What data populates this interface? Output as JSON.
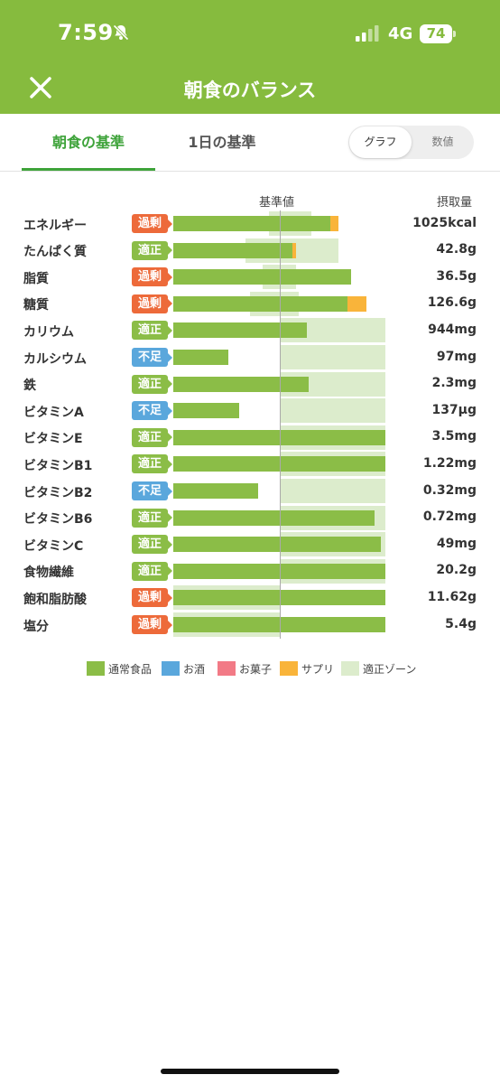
{
  "status_bar": {
    "time": "7:59",
    "network": "4G",
    "battery": "74"
  },
  "header": {
    "title": "朝食のバランス"
  },
  "tabs": [
    {
      "label": "朝食の基準",
      "active": true
    },
    {
      "label": "1日の基準",
      "active": false
    }
  ],
  "view_toggle": {
    "options": [
      "グラフ",
      "数値"
    ],
    "selected": "グラフ"
  },
  "columns": {
    "reference": "基準値",
    "intake": "摂取量"
  },
  "colors": {
    "normal_food": "#8bbd47",
    "alcohol": "#5aa7dc",
    "sweets": "#f27a86",
    "supplement": "#f9b43a",
    "zone": "#dceccc",
    "badge_excess": "#ed6a3a",
    "badge_proper": "#8bbd47",
    "badge_short": "#5aa7dc",
    "accent": "#3ea33a"
  },
  "nutrients": [
    {
      "name": "エネルギー",
      "status": "過剰",
      "value": "1025kcal",
      "zone": [
        0.45,
        0.65
      ],
      "food": 0.74,
      "supplement": 0.04
    },
    {
      "name": "たんぱく質",
      "status": "適正",
      "value": "42.8g",
      "zone": [
        0.34,
        0.78
      ],
      "food": 0.56,
      "supplement": 0.02
    },
    {
      "name": "脂質",
      "status": "過剰",
      "value": "36.5g",
      "zone": [
        0.42,
        0.58
      ],
      "food": 0.84,
      "supplement": 0
    },
    {
      "name": "糖質",
      "status": "過剰",
      "value": "126.6g",
      "zone": [
        0.36,
        0.59
      ],
      "food": 0.82,
      "supplement": 0.09
    },
    {
      "name": "カリウム",
      "status": "適正",
      "value": "944mg",
      "zone": [
        0.5,
        1.0
      ],
      "food": 0.63,
      "supplement": 0
    },
    {
      "name": "カルシウム",
      "status": "不足",
      "value": "97mg",
      "zone": [
        0.5,
        1.0
      ],
      "food": 0.26,
      "supplement": 0
    },
    {
      "name": "鉄",
      "status": "適正",
      "value": "2.3mg",
      "zone": [
        0.5,
        1.0
      ],
      "food": 0.64,
      "supplement": 0
    },
    {
      "name": "ビタミンA",
      "status": "不足",
      "value": "137µg",
      "zone": [
        0.5,
        1.0
      ],
      "food": 0.31,
      "supplement": 0
    },
    {
      "name": "ビタミンE",
      "status": "適正",
      "value": "3.5mg",
      "zone": [
        0.5,
        1.0
      ],
      "food": 1.0,
      "supplement": 0
    },
    {
      "name": "ビタミンB1",
      "status": "適正",
      "value": "1.22mg",
      "zone": [
        0.5,
        1.0
      ],
      "food": 1.0,
      "supplement": 0
    },
    {
      "name": "ビタミンB2",
      "status": "不足",
      "value": "0.32mg",
      "zone": [
        0.5,
        1.0
      ],
      "food": 0.4,
      "supplement": 0
    },
    {
      "name": "ビタミンB6",
      "status": "適正",
      "value": "0.72mg",
      "zone": [
        0.5,
        1.0
      ],
      "food": 0.95,
      "supplement": 0
    },
    {
      "name": "ビタミンC",
      "status": "適正",
      "value": "49mg",
      "zone": [
        0.5,
        1.0
      ],
      "food": 0.98,
      "supplement": 0
    },
    {
      "name": "食物繊維",
      "status": "適正",
      "value": "20.2g",
      "zone": [
        0.5,
        1.0
      ],
      "food": 1.0,
      "supplement": 0
    },
    {
      "name": "飽和脂肪酸",
      "status": "過剰",
      "value": "11.62g",
      "zone": [
        0,
        0.5
      ],
      "food": 1.0,
      "supplement": 0
    },
    {
      "name": "塩分",
      "status": "過剰",
      "value": "5.4g",
      "zone": [
        0,
        0.5
      ],
      "food": 1.0,
      "supplement": 0
    }
  ],
  "legend": [
    {
      "label": "通常食品",
      "color": "#8bbd47"
    },
    {
      "label": "お酒",
      "color": "#5aa7dc"
    },
    {
      "label": "お菓子",
      "color": "#f27a86"
    },
    {
      "label": "サプリ",
      "color": "#f9b43a"
    },
    {
      "label": "適正ゾーン",
      "color": "#dceccc"
    }
  ]
}
